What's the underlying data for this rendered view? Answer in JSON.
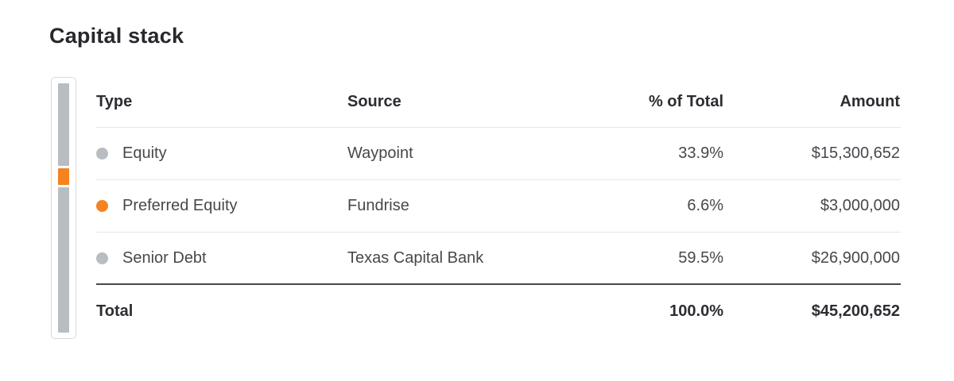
{
  "page": {
    "title": "Capital stack"
  },
  "chart_data": {
    "type": "table",
    "title": "Capital stack",
    "columns": {
      "type": "Type",
      "source": "Source",
      "pct": "% of Total",
      "amount": "Amount"
    },
    "rows": [
      {
        "type": "Equity",
        "source": "Waypoint",
        "pct": "33.9%",
        "amount": "$15,300,652",
        "value": 33.9,
        "dot_color": "#b8bdc2"
      },
      {
        "type": "Preferred Equity",
        "source": "Fundrise",
        "pct": "6.6%",
        "amount": "$3,000,000",
        "value": 6.6,
        "dot_color": "#f5831f"
      },
      {
        "type": "Senior Debt",
        "source": "Texas Capital Bank",
        "pct": "59.5%",
        "amount": "$26,900,000",
        "value": 59.5,
        "dot_color": "#b8bdc2"
      }
    ],
    "total": {
      "label": "Total",
      "pct": "100.0%",
      "amount": "$45,200,652"
    },
    "stacked_bar": {
      "type": "stacked-bar",
      "orientation": "vertical",
      "segments": [
        {
          "label": "Equity",
          "value": 33.9,
          "color": "#b8bdc2"
        },
        {
          "label": "Preferred Equity",
          "value": 6.6,
          "color": "#f5831f"
        },
        {
          "label": "Senior Debt",
          "value": 59.5,
          "color": "#b8bdc2"
        }
      ]
    }
  },
  "colors": {
    "accent_orange": "#f5831f",
    "neutral_gray": "#b8bdc2",
    "divider": "#e5e6e7",
    "total_divider": "#45484c"
  }
}
